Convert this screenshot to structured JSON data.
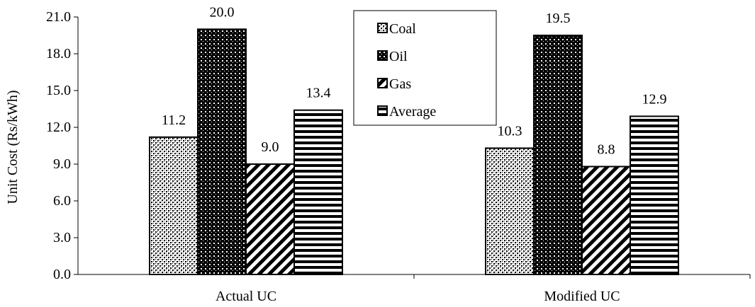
{
  "chart_data": {
    "type": "bar",
    "ylabel": "Unit Cost (Rs/kWh)",
    "xlabel": "",
    "ylim": [
      0,
      21
    ],
    "yticks": [
      "0.0",
      "3.0",
      "6.0",
      "9.0",
      "12.0",
      "15.0",
      "18.0",
      "21.0"
    ],
    "categories": [
      "Actual UC",
      "Modified UC"
    ],
    "series": [
      {
        "name": "Coal",
        "values": [
          11.2,
          10.3
        ],
        "labels": [
          "11.2",
          "10.3"
        ],
        "pattern": "dots"
      },
      {
        "name": "Oil",
        "values": [
          20.0,
          19.5
        ],
        "labels": [
          "20.0",
          "19.5"
        ],
        "pattern": "dark-dots"
      },
      {
        "name": "Gas",
        "values": [
          9.0,
          8.8
        ],
        "labels": [
          "9.0",
          "8.8"
        ],
        "pattern": "diagonal"
      },
      {
        "name": "Average",
        "values": [
          13.4,
          12.9
        ],
        "labels": [
          "13.4",
          "12.9"
        ],
        "pattern": "horizontal"
      }
    ],
    "grid": false,
    "legend_position": "top-center"
  }
}
